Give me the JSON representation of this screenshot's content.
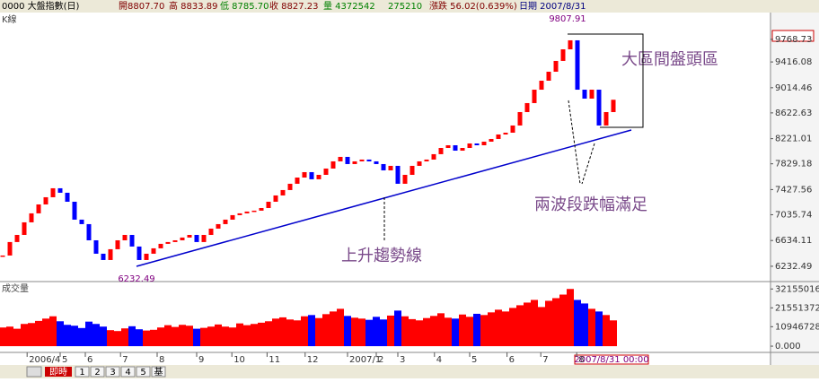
{
  "header": {
    "title": "0000 大盤指數(日)",
    "open": "開8807.70",
    "high": "高 8833.89",
    "low": "低 8785.70",
    "close": "收 8827.23",
    "volume": "量 4372542",
    "amount": "275210",
    "change": "漲跌 56.02(0.639%)",
    "date": "日期 2007/8/31"
  },
  "toolbar": {
    "live": "即時",
    "buttons": [
      "1",
      "2",
      "3",
      "4",
      "5",
      "基"
    ]
  },
  "chart_data": {
    "type": "candle",
    "price_label": "K線",
    "volume_label": "成交量",
    "annotations": {
      "high": "9807.91",
      "low": "6232.49",
      "top_zone": "大區間盤頭區",
      "two_waves": "兩波段跌幅滿足",
      "trend": "上升趨勢線",
      "last_date": "2007/8/31 00:00"
    },
    "up_color": "#ff0000",
    "down_color": "#0000ff",
    "xlim": [
      -0.375,
      106.875
    ],
    "xticks": [
      {
        "value": 3.4,
        "label": "2006/4"
      },
      {
        "value": 8,
        "label": "5"
      },
      {
        "value": 11.5,
        "label": "6"
      },
      {
        "value": 16.4,
        "label": "7"
      },
      {
        "value": 21.5,
        "label": "8"
      },
      {
        "value": 27,
        "label": "9"
      },
      {
        "value": 31.9,
        "label": "10"
      },
      {
        "value": 36.8,
        "label": "11"
      },
      {
        "value": 42.1,
        "label": "12"
      },
      {
        "value": 48,
        "label": "2007/1"
      },
      {
        "value": 52,
        "label": "2"
      },
      {
        "value": 55,
        "label": "3"
      },
      {
        "value": 60.1,
        "label": "4"
      },
      {
        "value": 65,
        "label": "5"
      },
      {
        "value": 70.2,
        "label": "6"
      },
      {
        "value": 74.9,
        "label": "7"
      },
      {
        "value": 79.9,
        "label": "8"
      }
    ],
    "ylim": [
      6050,
      10130
    ],
    "yticks": [
      9768.73,
      9416.08,
      9014.46,
      8622.63,
      8221.01,
      7829.18,
      7427.56,
      7035.74,
      6634.11,
      6232.49
    ],
    "y2lim": [
      -3000000,
      34300000
    ],
    "y2ticks": [
      32155016,
      21551372,
      10946728,
      {
        "value": 0,
        "label": "0.000"
      }
    ],
    "series": [
      {
        "name": "收盤",
        "values": [
          6400,
          6610,
          6721,
          6917,
          7057,
          7196,
          7308,
          7448,
          7378,
          7238,
          6959,
          6889,
          6637,
          6428,
          6330,
          6498,
          6637,
          6721,
          6540,
          6330,
          6428,
          6512,
          6582,
          6610,
          6637,
          6680,
          6721,
          6610,
          6721,
          6819,
          6889,
          6959,
          7029,
          7057,
          7085,
          7099,
          7140,
          7238,
          7336,
          7420,
          7518,
          7615,
          7699,
          7588,
          7657,
          7755,
          7867,
          7937,
          7825,
          7867,
          7895,
          7867,
          7825,
          7727,
          7797,
          7518,
          7657,
          7797,
          7867,
          7895,
          7979,
          8076,
          8118,
          8034,
          8076,
          8146,
          8118,
          8174,
          8216,
          8286,
          8314,
          8426,
          8635,
          8775,
          8984,
          9124,
          9264,
          9432,
          9613,
          9753,
          8984,
          8845,
          8984,
          8426,
          8635,
          8827
        ]
      },
      {
        "name": "成交量",
        "axis": "y2",
        "values": [
          10500000,
          11000000,
          9800000,
          12500000,
          13000000,
          14200000,
          15500000,
          16800000,
          14000000,
          12000000,
          11500000,
          10200000,
          13800000,
          12500000,
          11000000,
          9000000,
          8500000,
          10000000,
          11200000,
          9500000,
          8800000,
          9200000,
          10500000,
          11800000,
          10800000,
          12000000,
          11500000,
          9800000,
          10300000,
          11000000,
          12200000,
          11000000,
          10500000,
          12800000,
          11800000,
          12500000,
          13200000,
          14000000,
          15500000,
          16200000,
          15000000,
          14500000,
          16800000,
          17500000,
          15800000,
          18000000,
          19500000,
          21000000,
          17000000,
          16000000,
          15500000,
          14800000,
          16500000,
          15000000,
          17200000,
          20000000,
          16800000,
          15200000,
          14500000,
          15800000,
          17000000,
          18500000,
          16000000,
          15500000,
          17800000,
          16500000,
          18200000,
          17500000,
          19000000,
          20500000,
          19500000,
          21500000,
          23000000,
          24500000,
          26000000,
          22000000,
          25500000,
          27000000,
          29000000,
          32155016,
          26000000,
          24000000,
          21000000,
          19500000,
          17500000,
          14500000
        ]
      }
    ]
  }
}
